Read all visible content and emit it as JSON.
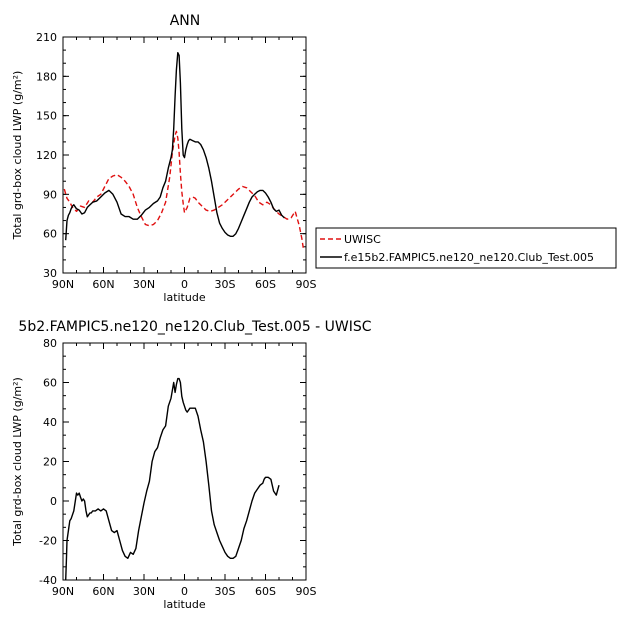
{
  "chart_data": [
    {
      "type": "line",
      "title": "ANN",
      "xlabel": "latitude",
      "ylabel": "Total grd-box cloud LWP (g/m²)",
      "xlim": [
        90,
        -90
      ],
      "ylim": [
        30,
        210
      ],
      "xticks": [
        90,
        60,
        30,
        0,
        -30,
        -60,
        -90
      ],
      "xticklabels": [
        "90N",
        "60N",
        "30N",
        "0",
        "30S",
        "60S",
        "90S"
      ],
      "yticks": [
        30,
        60,
        90,
        120,
        150,
        180,
        210
      ],
      "yticklabels": [
        "30",
        "60",
        "90",
        "120",
        "150",
        "180",
        "210"
      ],
      "legend_position": "right",
      "series": [
        {
          "name": "UWISC",
          "color": "#e01010",
          "dash": "dashed",
          "x": [
            89,
            87,
            85,
            83,
            80,
            77,
            74,
            71,
            68,
            65,
            62,
            59,
            56,
            53,
            50,
            47,
            44,
            41,
            38,
            35,
            32,
            29,
            26,
            23,
            20,
            17,
            14,
            11,
            9,
            7,
            6,
            5,
            4,
            3,
            2,
            1,
            0,
            -2,
            -4,
            -6,
            -8,
            -10,
            -13,
            -16,
            -19,
            -22,
            -25,
            -28,
            -31,
            -34,
            -37,
            -40,
            -43,
            -46,
            -49,
            -52,
            -55,
            -58,
            -61,
            -64,
            -67,
            -70,
            -73,
            -76,
            -79,
            -82,
            -85,
            -87,
            -88
          ],
          "values": [
            94,
            87,
            84,
            80,
            77,
            81,
            80,
            85,
            84,
            88,
            90,
            96,
            102,
            104,
            105,
            103,
            100,
            96,
            90,
            80,
            73,
            67,
            66,
            67,
            70,
            76,
            84,
            103,
            122,
            135,
            138,
            133,
            122,
            106,
            92,
            83,
            76,
            80,
            87,
            88,
            87,
            84,
            81,
            78,
            77,
            78,
            80,
            82,
            85,
            88,
            91,
            94,
            96,
            95,
            92,
            89,
            84,
            82,
            84,
            82,
            78,
            75,
            73,
            71,
            72,
            77,
            66,
            56,
            49
          ]
        },
        {
          "name": "f.e15b2.FAMPIC5.ne120_ne120.Club_Test.005",
          "color": "#000000",
          "dash": "solid",
          "x": [
            88,
            87,
            86,
            85,
            84,
            83,
            82,
            80,
            78,
            76,
            74,
            72,
            70,
            68,
            65,
            62,
            59,
            56,
            53,
            50,
            47,
            44,
            41,
            38,
            35,
            32,
            29,
            26,
            23,
            20,
            18,
            16,
            14,
            12,
            10,
            9,
            8,
            7,
            6,
            5,
            4,
            3,
            2,
            1,
            0,
            -1,
            -2,
            -3,
            -4,
            -6,
            -8,
            -10,
            -12,
            -14,
            -16,
            -18,
            -20,
            -22,
            -24,
            -26,
            -28,
            -30,
            -32,
            -34,
            -36,
            -38,
            -40,
            -42,
            -44,
            -46,
            -48,
            -50,
            -52,
            -54,
            -56,
            -58,
            -60,
            -62,
            -64,
            -66,
            -68,
            -70,
            -72,
            -74
          ],
          "values": [
            55,
            70,
            74,
            76,
            79,
            81,
            82,
            79,
            78,
            75,
            76,
            80,
            82,
            84,
            85,
            88,
            91,
            93,
            90,
            84,
            75,
            73,
            73,
            71,
            71,
            74,
            78,
            80,
            83,
            85,
            88,
            95,
            100,
            110,
            118,
            124,
            140,
            165,
            185,
            198,
            196,
            175,
            140,
            120,
            118,
            124,
            128,
            131,
            132,
            131,
            130,
            130,
            128,
            124,
            118,
            110,
            100,
            88,
            76,
            68,
            64,
            61,
            59,
            58,
            58,
            60,
            64,
            69,
            74,
            79,
            84,
            88,
            90,
            92,
            93,
            93,
            91,
            88,
            84,
            79,
            77,
            78,
            74,
            72
          ]
        }
      ]
    },
    {
      "type": "line",
      "title": "5b2.FAMPIC5.ne120_ne120.Club_Test.005 - UWISC",
      "xlabel": "latitude",
      "ylabel": "Total grd-box cloud LWP (g/m²)",
      "xlim": [
        90,
        -90
      ],
      "ylim": [
        -40,
        80
      ],
      "xticks": [
        90,
        60,
        30,
        0,
        -30,
        -60,
        -90
      ],
      "xticklabels": [
        "90N",
        "60N",
        "30N",
        "0",
        "30S",
        "60S",
        "90S"
      ],
      "yticks": [
        -40,
        -20,
        0,
        20,
        40,
        60,
        80
      ],
      "yticklabels": [
        "-40",
        "-20",
        "0",
        "20",
        "40",
        "60",
        "80"
      ],
      "series": [
        {
          "color": "#000000",
          "dash": "solid",
          "x": [
            88,
            87.5,
            87,
            86,
            85,
            84,
            82,
            80,
            79,
            78,
            77,
            76,
            75,
            74,
            73,
            72,
            70,
            69,
            68,
            66,
            64,
            62,
            60,
            58,
            56,
            54,
            52,
            50,
            48,
            46,
            44,
            42,
            40,
            38,
            36,
            34,
            32,
            30,
            28,
            26,
            24,
            22,
            20,
            18,
            16,
            14,
            12,
            10,
            8,
            7,
            6,
            5,
            4,
            3,
            2,
            1,
            0,
            -1,
            -2,
            -4,
            -6,
            -8,
            -10,
            -12,
            -14,
            -16,
            -18,
            -20,
            -22,
            -24,
            -26,
            -28,
            -30,
            -32,
            -34,
            -36,
            -38,
            -40,
            -42,
            -44,
            -46,
            -48,
            -50,
            -52,
            -54,
            -56,
            -58,
            -59,
            -60,
            -62,
            -64,
            -66,
            -68,
            -70
          ],
          "values": [
            -40,
            -30,
            -20,
            -15,
            -10,
            -9,
            -5,
            4,
            3,
            4,
            2,
            0,
            1,
            0,
            -5,
            -8,
            -6,
            -6,
            -5,
            -5,
            -4,
            -5,
            -4,
            -5,
            -10,
            -15,
            -16,
            -15,
            -20,
            -25,
            -28,
            -29,
            -26,
            -27,
            -24,
            -15,
            -8,
            -1,
            5,
            10,
            20,
            25,
            27,
            32,
            36,
            38,
            48,
            52,
            60,
            55,
            59,
            62,
            62,
            60,
            53,
            50,
            48,
            46,
            45,
            47,
            47,
            47,
            43,
            36,
            30,
            20,
            8,
            -5,
            -12,
            -16,
            -20,
            -23,
            -26,
            -28,
            -29,
            -29,
            -28,
            -24,
            -20,
            -14,
            -10,
            -5,
            0,
            4,
            6,
            8,
            9,
            11,
            12,
            12,
            11,
            5,
            3,
            8
          ]
        }
      ]
    }
  ]
}
